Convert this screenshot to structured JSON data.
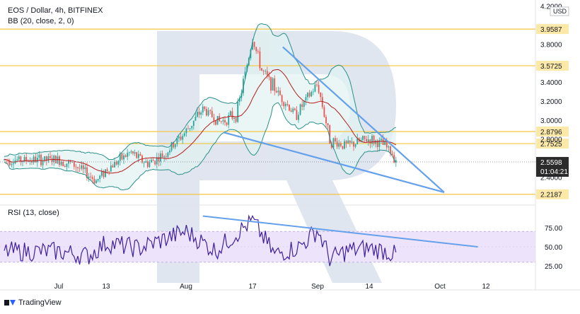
{
  "header": {
    "symbol_line": "EOS / Dollar, 4h, BITFINEX",
    "bb_line": "BB (20, close, 2, 0)",
    "rsi_line": "RSI (13, close)",
    "brand": "TradingView"
  },
  "colors": {
    "candle_up": "#26a69a",
    "candle_down": "#ef5350",
    "bb_band": "#2a8f8a",
    "bb_basis": "#b71c1c",
    "bb_fill": "#e0f2f1",
    "level_line": "#f5c542",
    "level_label_bg": "#fce9a8",
    "trendline": "#64a0ec",
    "rsi_line": "#3f1f9e",
    "rsi_band": "#ede4fb",
    "price_tag": "#2b2b2b",
    "watermark": "#dde3ee"
  },
  "chart_data": [
    {
      "type": "candlestick",
      "title": "EOS / Dollar, 4h, BITFINEX",
      "indicator": "BB (20, close, 2, 0)",
      "x_ticks": [
        "Jul",
        "13",
        "Aug",
        "17",
        "Sep",
        "14",
        "Oct",
        "12"
      ],
      "y_ticks": [
        "4.2000",
        "3.8000",
        "3.4000",
        "3.2000",
        "3.0000",
        "2.8000",
        "2.4000"
      ],
      "y_top_label": "USD",
      "ylim": [
        2.12,
        4.22
      ],
      "horizontal_levels": [
        "3.9587",
        "3.5725",
        "2.8796",
        "2.7525",
        "2.2187"
      ],
      "last_price": "2.5598",
      "countdown": "01:04:21",
      "close_path": [
        [
          "Jul",
          2.58
        ],
        [
          "Jul 05",
          2.52
        ],
        [
          "Jul 10",
          2.36
        ],
        [
          "13",
          2.48
        ],
        [
          "Jul 18",
          2.66
        ],
        [
          "Jul 22",
          2.54
        ],
        [
          "Jul 26",
          2.63
        ],
        [
          "Aug",
          2.88
        ],
        [
          "Aug 05",
          3.12
        ],
        [
          "Aug 09",
          2.98
        ],
        [
          "Aug 13",
          3.06
        ],
        [
          "17",
          3.86
        ],
        [
          "Aug 19",
          3.52
        ],
        [
          "Aug 23",
          3.28
        ],
        [
          "Aug 27",
          3.05
        ],
        [
          "Sep",
          3.38
        ],
        [
          "Sep 04",
          2.78
        ],
        [
          "Sep 08",
          2.73
        ],
        [
          "14",
          2.8
        ],
        [
          "Sep 17",
          2.73
        ],
        [
          "Sep 20",
          2.58
        ]
      ],
      "trendlines": [
        {
          "from": [
            "Aug 10",
            2.87
          ],
          "to": [
            "Oct 02",
            2.24
          ]
        },
        {
          "from": [
            "Aug 24",
            3.77
          ],
          "to": [
            "Oct 02",
            2.24
          ]
        }
      ]
    },
    {
      "type": "line",
      "title": "RSI (13, close)",
      "y_ticks": [
        "75.00",
        "50.00",
        "25.00"
      ],
      "ylim": [
        5,
        95
      ],
      "band": [
        30,
        70
      ],
      "values_path": [
        [
          "Jul",
          44
        ],
        [
          "Jul 08",
          38
        ],
        [
          "13",
          55
        ],
        [
          "Jul 20",
          48
        ],
        [
          "Aug",
          70
        ],
        [
          "Aug 08",
          45
        ],
        [
          "17",
          84
        ],
        [
          "Aug 22",
          40
        ],
        [
          "Aug 28",
          50
        ],
        [
          "Sep",
          72
        ],
        [
          "Sep 04",
          34
        ],
        [
          "Sep 08",
          45
        ],
        [
          "14",
          48
        ],
        [
          "Sep 17",
          45
        ],
        [
          "Sep 20",
          38
        ]
      ],
      "trendline": {
        "from": [
          "Aug 05",
          90
        ],
        "to": [
          "Oct 10",
          50
        ]
      }
    }
  ]
}
